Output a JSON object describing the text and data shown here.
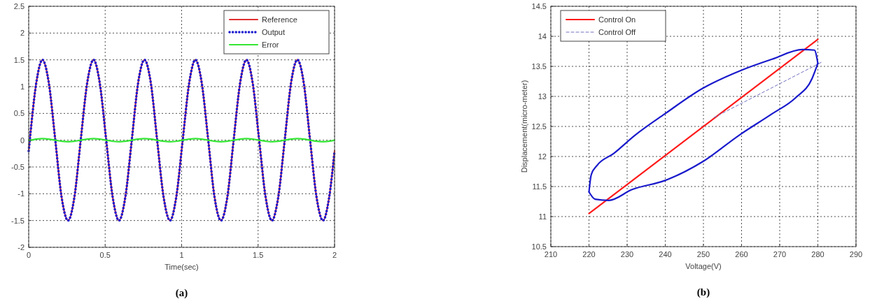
{
  "chart_data": [
    {
      "type": "line",
      "xlabel": "Time(sec)",
      "xlim": [
        0,
        2
      ],
      "xticks": [
        0,
        0.5,
        1,
        1.5,
        2
      ],
      "ylim": [
        -2,
        2.5
      ],
      "yticks": [
        -2,
        -1.5,
        -1,
        -0.5,
        0,
        0.5,
        1,
        1.5,
        2,
        2.5
      ],
      "grid": true,
      "legend": "top right",
      "annotations": [
        "(a)"
      ],
      "x": [
        0,
        0.007,
        0.049,
        0.09,
        0.132,
        0.174,
        0.215,
        0.257,
        0.299,
        0.34,
        0.382,
        0.424,
        0.465,
        0.507,
        0.549,
        0.59,
        0.632,
        0.674,
        0.715,
        0.757,
        0.799,
        0.84,
        0.882,
        0.924,
        0.965,
        1.007,
        1.049,
        1.09,
        1.132,
        1.174,
        1.215,
        1.257,
        1.299,
        1.34,
        1.382,
        1.424,
        1.465,
        1.507,
        1.549,
        1.59,
        1.632,
        1.674,
        1.715,
        1.757,
        1.799,
        1.84,
        1.882,
        1.924,
        1.965,
        2
      ],
      "series": [
        {
          "name": "Reference",
          "color": "#e03030",
          "line_style": "solid",
          "values": [
            -0.2,
            0,
            1.06,
            1.5,
            1.06,
            0,
            -1.06,
            -1.5,
            -1.06,
            0,
            1.06,
            1.5,
            1.06,
            0,
            -1.06,
            -1.5,
            -1.06,
            0,
            1.06,
            1.5,
            1.06,
            0,
            -1.06,
            -1.5,
            -1.06,
            0,
            1.06,
            1.5,
            1.06,
            0,
            -1.06,
            -1.5,
            -1.06,
            0,
            1.06,
            1.5,
            1.06,
            0,
            -1.06,
            -1.5,
            -1.06,
            0,
            1.06,
            1.5,
            1.06,
            0,
            -1.06,
            -1.5,
            -1.06,
            -0.2
          ]
        },
        {
          "name": "Output",
          "color": "#1a1ad0",
          "line_style": "dotted",
          "values": [
            -0.2,
            0,
            1.06,
            1.5,
            1.06,
            0,
            -1.06,
            -1.5,
            -1.06,
            0,
            1.06,
            1.5,
            1.06,
            0,
            -1.06,
            -1.5,
            -1.06,
            0,
            1.06,
            1.5,
            1.06,
            0,
            -1.06,
            -1.5,
            -1.06,
            0,
            1.06,
            1.5,
            1.06,
            0,
            -1.06,
            -1.5,
            -1.06,
            0,
            1.06,
            1.5,
            1.06,
            0,
            -1.06,
            -1.5,
            -1.06,
            0,
            1.06,
            1.5,
            1.06,
            0,
            -1.06,
            -1.5,
            -1.06,
            -0.2
          ]
        },
        {
          "name": "Error",
          "color": "#33e633",
          "line_style": "solid",
          "values": [
            0,
            0,
            0.02,
            0.03,
            0.02,
            0,
            -0.02,
            -0.03,
            -0.02,
            0,
            0.02,
            0.03,
            0.02,
            0,
            -0.02,
            -0.03,
            -0.02,
            0,
            0.02,
            0.03,
            0.02,
            0,
            -0.02,
            -0.03,
            -0.02,
            0,
            0.02,
            0.03,
            0.02,
            0,
            -0.02,
            -0.03,
            -0.02,
            0,
            0.02,
            0.03,
            0.02,
            0,
            -0.02,
            -0.03,
            -0.02,
            0,
            0.02,
            0.03,
            0.02,
            0,
            -0.02,
            -0.03,
            -0.02,
            0
          ]
        }
      ]
    },
    {
      "type": "line",
      "xlabel": "Voltage(V)",
      "ylabel": "Displacement(micro-meter)",
      "xlim": [
        210,
        290
      ],
      "xticks": [
        210,
        220,
        230,
        240,
        250,
        260,
        270,
        280,
        290
      ],
      "ylim": [
        10.5,
        14.5
      ],
      "yticks": [
        10.5,
        11,
        11.5,
        12,
        12.5,
        13,
        13.5,
        14,
        14.5
      ],
      "grid": true,
      "legend": "top left",
      "annotations": [
        "(b)"
      ],
      "series": [
        {
          "name": "Control On",
          "color": "#ff1a1a",
          "line_style": "solid",
          "x": [
            220,
            280
          ],
          "values": [
            11.05,
            13.95
          ]
        },
        {
          "name": "Control Off",
          "color": "#7070c0",
          "line_style": "dashed",
          "x": [
            252.8,
            281
          ],
          "values": [
            12.65,
            13.57
          ]
        },
        {
          "color": "#1a1acc",
          "line_style": "solid",
          "x": [
            220,
            221.6,
            225.2,
            231.3,
            239.9,
            249.7,
            259.5,
            268,
            274.2,
            278.5,
            280
          ],
          "values": [
            11.41,
            11.29,
            11.27,
            11.45,
            11.6,
            11.91,
            12.36,
            12.71,
            12.98,
            13.3,
            13.55
          ]
        },
        {
          "color": "#1a1acc",
          "line_style": "solid",
          "x": [
            220,
            220.6,
            222.1,
            226.5,
            232,
            239.9,
            249.7,
            260.1,
            268,
            276,
            279.1,
            280
          ],
          "values": [
            11.41,
            11.7,
            11.85,
            12.05,
            12.35,
            12.71,
            13.13,
            13.44,
            13.62,
            13.78,
            13.77,
            13.55
          ]
        }
      ]
    }
  ]
}
